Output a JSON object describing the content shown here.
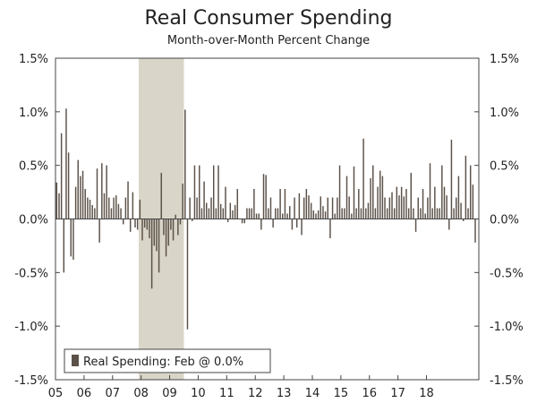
{
  "chart_data": {
    "type": "bar",
    "title": "Real Consumer Spending",
    "subtitle": "Month-over-Month Percent Change",
    "xlabel": "",
    "ylabel": "",
    "ylim": [
      -1.5,
      1.5
    ],
    "y_ticks": [
      1.5,
      1.0,
      0.5,
      0.0,
      -0.5,
      -1.0,
      -1.5
    ],
    "y_tick_labels": [
      "1.5%",
      "1.0%",
      "0.5%",
      "0.0%",
      "-0.5%",
      "-1.0%",
      "-1.5%"
    ],
    "x_tick_labels": [
      "05",
      "06",
      "07",
      "08",
      "09",
      "10",
      "11",
      "12",
      "13",
      "14",
      "15",
      "16",
      "17",
      "18"
    ],
    "start_year": 2005,
    "recession": {
      "start": 2007.917,
      "end": 2009.5
    },
    "bar_color": "#5b5148",
    "recession_color": "#d9d5c8",
    "legend": {
      "label": "Real Spending: Feb @ 0.0%"
    },
    "series": [
      {
        "name": "Real Spending",
        "values": [
          0.34,
          0.24,
          0.8,
          -0.5,
          1.03,
          0.62,
          -0.35,
          -0.38,
          0.3,
          0.55,
          0.4,
          0.45,
          0.28,
          0.2,
          0.18,
          0.13,
          0.1,
          0.47,
          -0.22,
          0.52,
          0.24,
          0.5,
          0.2,
          0.1,
          0.2,
          0.22,
          0.14,
          0.1,
          -0.05,
          0.2,
          0.35,
          -0.12,
          0.25,
          -0.08,
          -0.1,
          0.18,
          -0.2,
          -0.08,
          -0.1,
          -0.18,
          -0.65,
          -0.25,
          -0.3,
          -0.5,
          0.43,
          -0.15,
          -0.35,
          -0.25,
          -0.1,
          -0.2,
          0.04,
          -0.15,
          -0.05,
          0.33,
          1.02,
          -1.03,
          0.2,
          -0.02,
          0.5,
          0.2,
          0.5,
          0.1,
          0.35,
          0.15,
          0.1,
          0.2,
          0.5,
          0.1,
          0.5,
          0.14,
          0.1,
          0.3,
          -0.03,
          0.15,
          0.08,
          0.13,
          0.28,
          0.0,
          -0.04,
          -0.04,
          0.1,
          0.1,
          0.1,
          0.28,
          0.05,
          0.05,
          -0.1,
          0.42,
          0.41,
          0.1,
          0.2,
          -0.08,
          0.1,
          0.1,
          0.28,
          0.05,
          0.28,
          0.05,
          0.12,
          -0.1,
          0.2,
          -0.08,
          0.24,
          -0.15,
          0.2,
          0.28,
          0.22,
          0.15,
          0.08,
          0.05,
          0.08,
          0.21,
          0.12,
          0.07,
          0.2,
          -0.18,
          0.2,
          0.05,
          0.2,
          0.5,
          0.1,
          0.1,
          0.4,
          0.21,
          0.05,
          0.49,
          0.1,
          0.28,
          0.1,
          0.75,
          0.1,
          0.15,
          0.38,
          0.5,
          0.1,
          0.3,
          0.45,
          0.4,
          0.2,
          0.1,
          0.2,
          0.25,
          0.1,
          0.3,
          0.22,
          0.3,
          0.21,
          0.28,
          0.1,
          0.43,
          0.1,
          -0.12,
          0.2,
          0.1,
          0.28,
          0.05,
          0.2,
          0.52,
          0.1,
          0.3,
          0.1,
          0.1,
          0.5,
          0.3,
          0.22,
          -0.1,
          0.74,
          0.1,
          0.2,
          0.4,
          0.15,
          -0.02,
          0.59,
          0.1,
          0.5,
          0.32,
          -0.22,
          0.0
        ]
      }
    ]
  }
}
